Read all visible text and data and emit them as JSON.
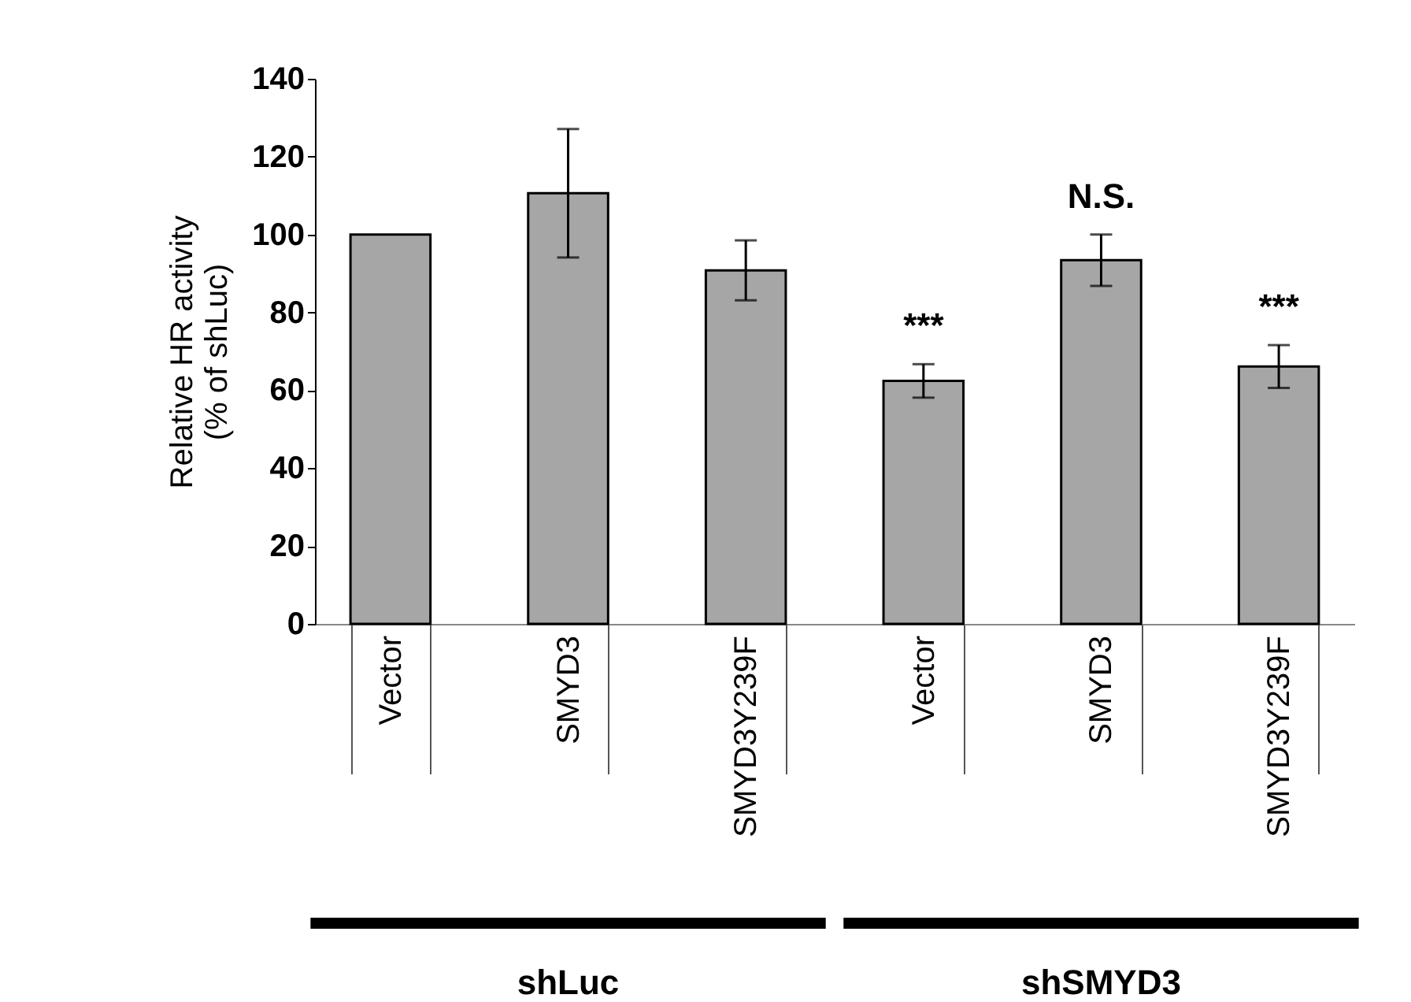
{
  "chart_data": {
    "type": "bar",
    "ylabel": "Relative HR activity\n(% of shLuc)",
    "categories": [
      "Vector",
      "SMYD3",
      "SMYD3Y239F",
      "Vector",
      "SMYD3",
      "SMYD3Y239F"
    ],
    "values": [
      100,
      110.6,
      90.8,
      62.4,
      93.4,
      66.1
    ],
    "errors": [
      null,
      16.5,
      7.7,
      4.3,
      6.6,
      5.5
    ],
    "color": "#a6a6a6",
    "ylim": [
      0,
      140
    ],
    "yticks": [
      0,
      20,
      40,
      60,
      80,
      100,
      120,
      140
    ],
    "grid": false,
    "annotations": [
      "***",
      "N.S.",
      "***",
      "shLuc",
      "shSMYD3"
    ]
  }
}
